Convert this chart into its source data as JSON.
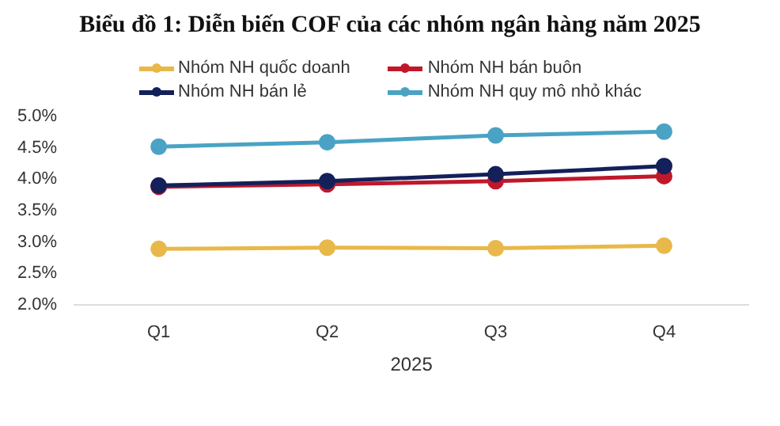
{
  "chart_data": {
    "type": "line",
    "title": "Biểu đồ 1: Diễn biến COF của các nhóm ngân hàng năm 2025",
    "xlabel": "2025",
    "categories": [
      "Q1",
      "Q2",
      "Q3",
      "Q4"
    ],
    "series": [
      {
        "name": "Nhóm NH quốc doanh",
        "color": "#e8b84a",
        "values": [
          2.89,
          2.91,
          2.9,
          2.94
        ]
      },
      {
        "name": "Nhóm NH bán buôn",
        "color": "#c0182a",
        "values": [
          3.88,
          3.92,
          3.97,
          4.05
        ]
      },
      {
        "name": "Nhóm NH bán lẻ",
        "color": "#13205a",
        "values": [
          3.9,
          3.97,
          4.08,
          4.21
        ]
      },
      {
        "name": "Nhóm NH quy mô nhỏ khác",
        "color": "#4aa3c4",
        "values": [
          4.52,
          4.59,
          4.7,
          4.76
        ]
      }
    ],
    "ylim": [
      2,
      5
    ],
    "yticks": [
      {
        "value": 2,
        "label": "2.0%"
      },
      {
        "value": 2.5,
        "label": "2.5%"
      },
      {
        "value": 3,
        "label": "3.0%"
      },
      {
        "value": 3.5,
        "label": "3.5%"
      },
      {
        "value": 4,
        "label": "4.0%"
      },
      {
        "value": 4.5,
        "label": "4.5%"
      },
      {
        "value": 5,
        "label": "5.0%"
      }
    ],
    "grid": false,
    "legend": "top",
    "marker": "circle",
    "line_style": "solid"
  }
}
